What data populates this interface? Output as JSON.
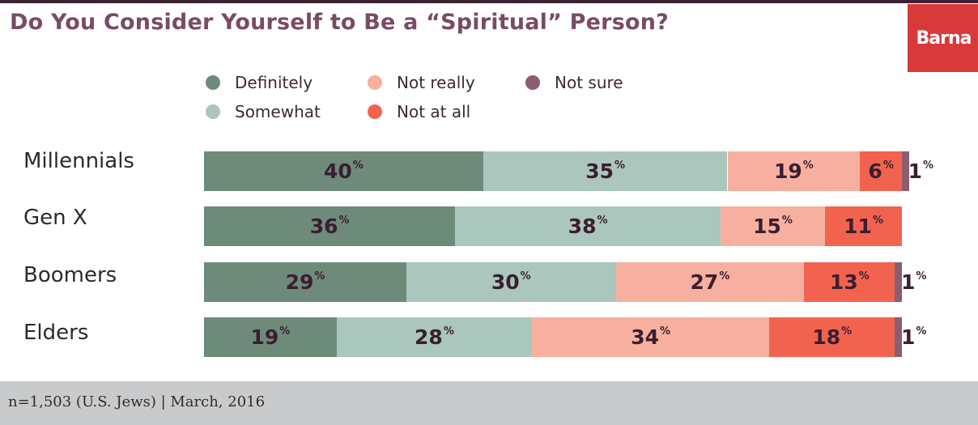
{
  "header": {
    "title": "Do You Consider Yourself to Be a “Spiritual” Person?",
    "logo_text": "Barna"
  },
  "colors": {
    "title": "#7a4b64",
    "logo_bg": "#d8393a",
    "footer_bg": "#c9cacb"
  },
  "chart_data": {
    "type": "bar",
    "orientation": "horizontal",
    "stacked": true,
    "title": "Do You Consider Yourself to Be a “Spiritual” Person?",
    "categories": [
      "Millennials",
      "Gen X",
      "Boomers",
      "Elders"
    ],
    "unit": "%",
    "legend_position": "top",
    "series": [
      {
        "name": "Definitely",
        "color": "#6e8a7b",
        "values": [
          40,
          36,
          29,
          19
        ]
      },
      {
        "name": "Somewhat",
        "color": "#abc6bc",
        "values": [
          35,
          38,
          30,
          28
        ]
      },
      {
        "name": "Not really",
        "color": "#f7b09f",
        "values": [
          19,
          15,
          27,
          34
        ]
      },
      {
        "name": "Not at all",
        "color": "#f2634f",
        "values": [
          6,
          11,
          13,
          18
        ]
      },
      {
        "name": "Not sure",
        "color": "#8a5d73",
        "values": [
          1,
          0,
          1,
          1
        ]
      }
    ],
    "legend": [
      {
        "name": "Definitely",
        "color": "#6e8a7b"
      },
      {
        "name": "Not really",
        "color": "#f7b09f"
      },
      {
        "name": "Not sure",
        "color": "#8a5d73"
      },
      {
        "name": "Somewhat",
        "color": "#abc6bc"
      },
      {
        "name": "Not at all",
        "color": "#f2634f"
      }
    ]
  },
  "footer": {
    "note": "n=1,503 (U.S. Jews) | March, 2016"
  }
}
